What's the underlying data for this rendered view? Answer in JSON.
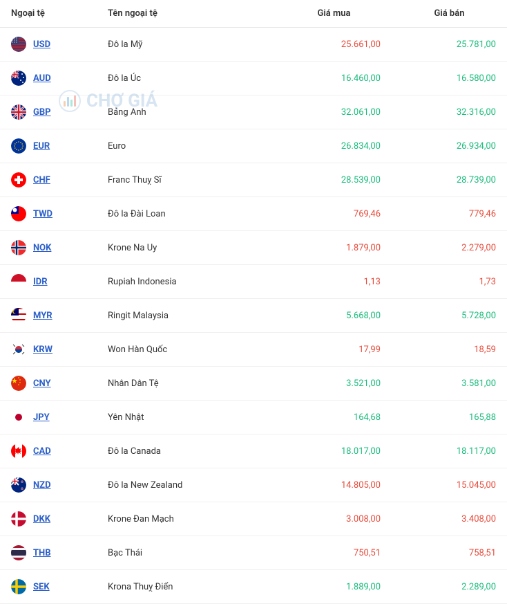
{
  "columns": {
    "code": "Ngoại tệ",
    "name": "Tên ngoại tệ",
    "buy": "Giá mua",
    "sell": "Giá bán"
  },
  "watermark": "CHỢ GIÁ",
  "colors": {
    "link": "#2b5fc9",
    "up": "#1abc7c",
    "down": "#e74c3c",
    "text": "#333333",
    "border": "#f0f0f0"
  },
  "rows": [
    {
      "code": "USD",
      "name": "Đô la Mỹ",
      "buy": "25.661,00",
      "buy_dir": "down",
      "sell": "25.781,00",
      "sell_dir": "up",
      "flag": "usd"
    },
    {
      "code": "AUD",
      "name": "Đô la Úc",
      "buy": "16.460,00",
      "buy_dir": "up",
      "sell": "16.580,00",
      "sell_dir": "up",
      "flag": "aud"
    },
    {
      "code": "GBP",
      "name": "Bảng Anh",
      "buy": "32.061,00",
      "buy_dir": "up",
      "sell": "32.316,00",
      "sell_dir": "up",
      "flag": "gbp"
    },
    {
      "code": "EUR",
      "name": "Euro",
      "buy": "26.834,00",
      "buy_dir": "up",
      "sell": "26.934,00",
      "sell_dir": "up",
      "flag": "eur"
    },
    {
      "code": "CHF",
      "name": "Franc Thuỵ Sĩ",
      "buy": "28.539,00",
      "buy_dir": "up",
      "sell": "28.739,00",
      "sell_dir": "up",
      "flag": "chf"
    },
    {
      "code": "TWD",
      "name": "Đô la Đài Loan",
      "buy": "769,46",
      "buy_dir": "down",
      "sell": "779,46",
      "sell_dir": "down",
      "flag": "twd"
    },
    {
      "code": "NOK",
      "name": "Krone Na Uy",
      "buy": "1.879,00",
      "buy_dir": "down",
      "sell": "2.279,00",
      "sell_dir": "down",
      "flag": "nok"
    },
    {
      "code": "IDR",
      "name": "Rupiah Indonesia",
      "buy": "1,13",
      "buy_dir": "down",
      "sell": "1,73",
      "sell_dir": "down",
      "flag": "idr"
    },
    {
      "code": "MYR",
      "name": "Ringit Malaysia",
      "buy": "5.668,00",
      "buy_dir": "up",
      "sell": "5.728,00",
      "sell_dir": "up",
      "flag": "myr"
    },
    {
      "code": "KRW",
      "name": "Won Hàn Quốc",
      "buy": "17,99",
      "buy_dir": "down",
      "sell": "18,59",
      "sell_dir": "down",
      "flag": "krw"
    },
    {
      "code": "CNY",
      "name": "Nhân Dân Tệ",
      "buy": "3.521,00",
      "buy_dir": "up",
      "sell": "3.581,00",
      "sell_dir": "up",
      "flag": "cny"
    },
    {
      "code": "JPY",
      "name": "Yên Nhật",
      "buy": "164,68",
      "buy_dir": "up",
      "sell": "165,88",
      "sell_dir": "up",
      "flag": "jpy"
    },
    {
      "code": "CAD",
      "name": "Đô la Canada",
      "buy": "18.017,00",
      "buy_dir": "up",
      "sell": "18.117,00",
      "sell_dir": "up",
      "flag": "cad"
    },
    {
      "code": "NZD",
      "name": "Đô la New Zealand",
      "buy": "14.805,00",
      "buy_dir": "down",
      "sell": "15.045,00",
      "sell_dir": "down",
      "flag": "nzd"
    },
    {
      "code": "DKK",
      "name": "Krone Đan Mạch",
      "buy": "3.008,00",
      "buy_dir": "down",
      "sell": "3.408,00",
      "sell_dir": "down",
      "flag": "dkk"
    },
    {
      "code": "THB",
      "name": "Bạc Thái",
      "buy": "750,51",
      "buy_dir": "down",
      "sell": "758,51",
      "sell_dir": "down",
      "flag": "thb"
    },
    {
      "code": "SEK",
      "name": "Krona Thuỵ Điển",
      "buy": "1.889,00",
      "buy_dir": "up",
      "sell": "2.289,00",
      "sell_dir": "up",
      "flag": "sek"
    }
  ]
}
